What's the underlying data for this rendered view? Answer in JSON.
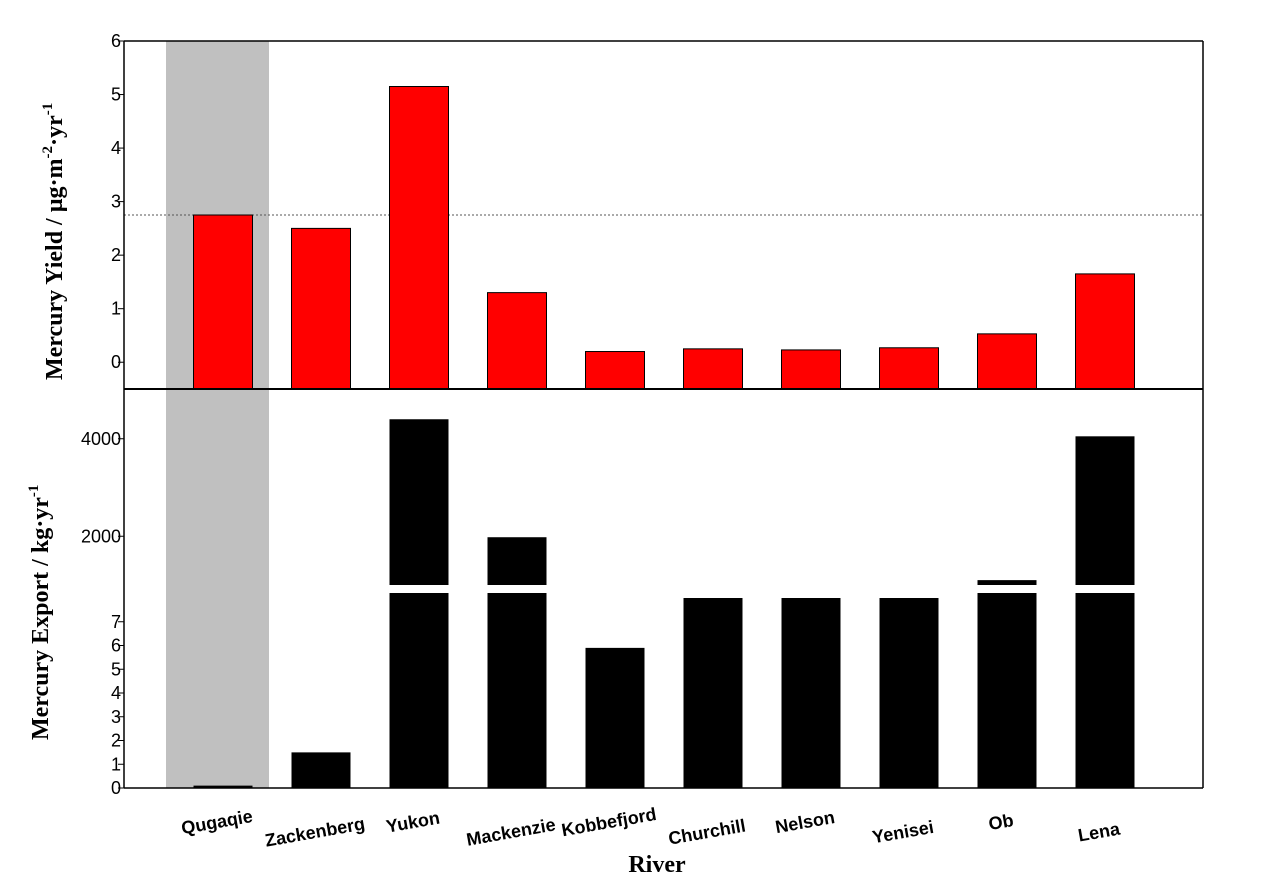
{
  "chart_data": [
    {
      "type": "bar",
      "panel": "top",
      "ylabel": "Mercury Yield / µg·m-2·yr-1",
      "ylabel_parts": {
        "base": "Mercury Yield / µg·m",
        "sup1": "-2",
        "mid": "·yr",
        "sup2": "-1"
      },
      "ylim": [
        -0.5,
        6
      ],
      "yticks": [
        "6",
        "5",
        "4",
        "3",
        "2",
        "1",
        "0"
      ],
      "ytick_values": [
        6,
        5,
        4,
        3,
        2,
        1,
        0
      ],
      "categories": [
        "Qugaqie",
        "Zackenberg",
        "Yukon",
        "Mackenzie",
        "Kobbefjord",
        "Churchill",
        "Nelson",
        "Yenisei",
        "Ob",
        "Lena"
      ],
      "values": [
        2.75,
        2.5,
        5.15,
        1.3,
        0.2,
        0.25,
        0.23,
        0.27,
        0.53,
        1.65
      ],
      "bar_color": "#ff0000",
      "reference_line": 2.75,
      "highlight_category": "Qugaqie",
      "highlight_color": "#c0c0c0"
    },
    {
      "type": "bar",
      "panel": "bottom",
      "ylabel": "Mercury Export / kg·yr-1",
      "ylabel_parts": {
        "base": "Mercury Export / kg·yr",
        "sup1": "-1"
      },
      "axis_break": true,
      "lower_ylim": [
        0,
        8
      ],
      "upper_ylim": [
        1000,
        5000
      ],
      "yticks_lower": [
        "0",
        "1",
        "2",
        "3",
        "4",
        "5",
        "6",
        "7"
      ],
      "yticks_lower_values": [
        0,
        1,
        2,
        3,
        4,
        5,
        6,
        7
      ],
      "yticks_upper": [
        "2000",
        "4000"
      ],
      "yticks_upper_values": [
        2000,
        4000
      ],
      "categories": [
        "Qugaqie",
        "Zackenberg",
        "Yukon",
        "Mackenzie",
        "Kobbefjord",
        "Churchill",
        "Nelson",
        "Yenisei",
        "Ob",
        "Lena"
      ],
      "values": [
        0.1,
        1.5,
        4400,
        1980,
        5.9,
        8,
        8,
        8,
        1100,
        4050
      ],
      "bar_color": "#000000",
      "xlabel": "River",
      "highlight_category": "Qugaqie",
      "highlight_color": "#c0c0c0"
    }
  ]
}
